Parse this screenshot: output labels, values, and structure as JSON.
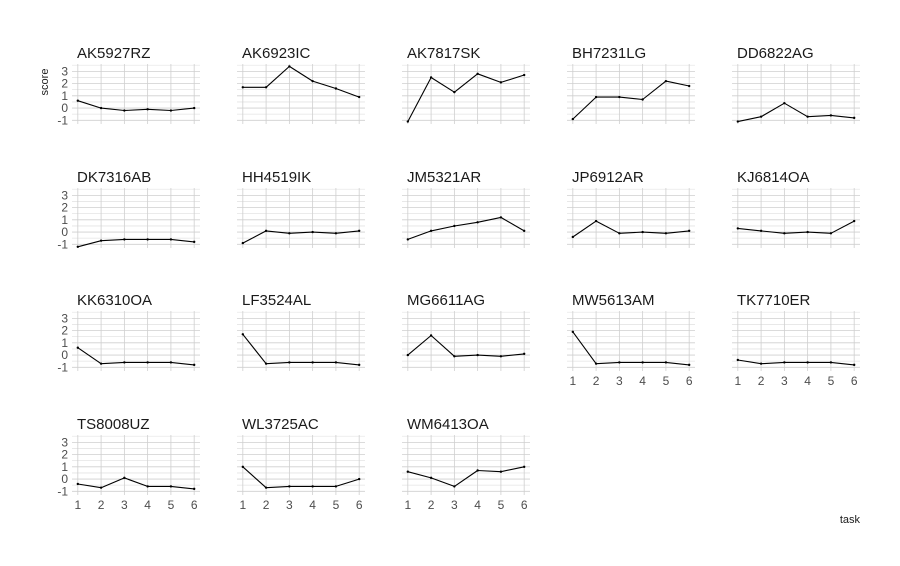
{
  "chart_data": {
    "type": "line",
    "layout": "facet-grid",
    "xlabel": "task",
    "ylabel": "score",
    "x": [
      1,
      2,
      3,
      4,
      5,
      6
    ],
    "x_ticks": [
      "1",
      "2",
      "3",
      "4",
      "5",
      "6"
    ],
    "y_ticks": [
      "-1",
      "0",
      "1",
      "2",
      "3"
    ],
    "ylim": [
      -1.3,
      3.6
    ],
    "grid": true,
    "series": [
      {
        "name": "AK5927RZ",
        "values": [
          0.6,
          0.0,
          -0.2,
          -0.1,
          -0.2,
          0.0
        ]
      },
      {
        "name": "AK6923IC",
        "values": [
          1.7,
          1.7,
          3.4,
          2.2,
          1.6,
          0.9
        ]
      },
      {
        "name": "AK7817SK",
        "values": [
          -1.1,
          2.5,
          1.3,
          2.8,
          2.1,
          2.7
        ]
      },
      {
        "name": "BH7231LG",
        "values": [
          -0.9,
          0.9,
          0.9,
          0.7,
          2.2,
          1.8
        ]
      },
      {
        "name": "DD6822AG",
        "values": [
          -1.1,
          -0.7,
          0.4,
          -0.7,
          -0.6,
          -0.8
        ]
      },
      {
        "name": "DK7316AB",
        "values": [
          -1.2,
          -0.7,
          -0.6,
          -0.6,
          -0.6,
          -0.8
        ]
      },
      {
        "name": "HH4519IK",
        "values": [
          -0.9,
          0.1,
          -0.1,
          0.0,
          -0.1,
          0.1
        ]
      },
      {
        "name": "JM5321AR",
        "values": [
          -0.6,
          0.1,
          0.5,
          0.8,
          1.2,
          0.1
        ]
      },
      {
        "name": "JP6912AR",
        "values": [
          -0.4,
          0.9,
          -0.1,
          0.0,
          -0.1,
          0.1
        ]
      },
      {
        "name": "KJ6814OA",
        "values": [
          0.3,
          0.1,
          -0.1,
          0.0,
          -0.1,
          0.9
        ]
      },
      {
        "name": "KK6310OA",
        "values": [
          0.6,
          -0.7,
          -0.6,
          -0.6,
          -0.6,
          -0.8
        ]
      },
      {
        "name": "LF3524AL",
        "values": [
          1.7,
          -0.7,
          -0.6,
          -0.6,
          -0.6,
          -0.8
        ]
      },
      {
        "name": "MG6611AG",
        "values": [
          0.0,
          1.6,
          -0.1,
          0.0,
          -0.1,
          0.1
        ]
      },
      {
        "name": "MW5613AM",
        "values": [
          1.9,
          -0.7,
          -0.6,
          -0.6,
          -0.6,
          -0.8
        ]
      },
      {
        "name": "TK7710ER",
        "values": [
          -0.4,
          -0.7,
          -0.6,
          -0.6,
          -0.6,
          -0.8
        ]
      },
      {
        "name": "TS8008UZ",
        "values": [
          -0.4,
          -0.7,
          0.1,
          -0.6,
          -0.6,
          -0.8
        ]
      },
      {
        "name": "WL3725AC",
        "values": [
          1.0,
          -0.7,
          -0.6,
          -0.6,
          -0.6,
          0.0
        ]
      },
      {
        "name": "WM6413OA",
        "values": [
          0.6,
          0.1,
          -0.6,
          0.7,
          0.6,
          1.0
        ]
      }
    ]
  }
}
